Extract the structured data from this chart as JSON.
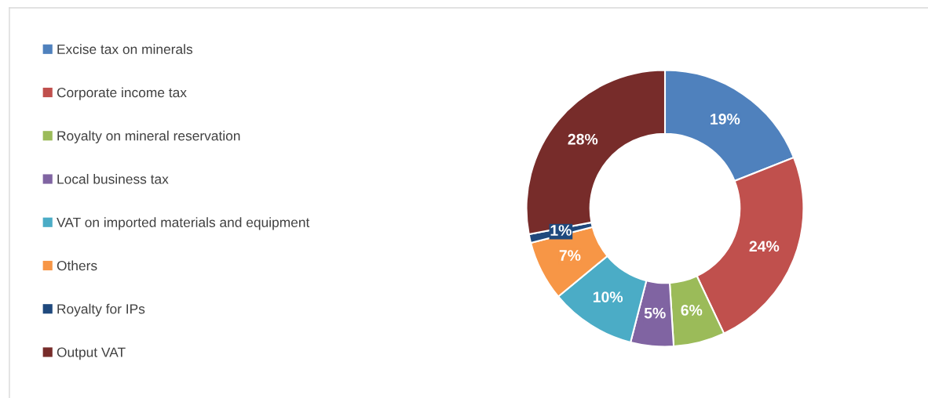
{
  "chart_data": {
    "type": "donut",
    "categories": [
      "Excise tax on minerals",
      "Corporate income tax",
      "Royalty on mineral reservation",
      "Local business tax",
      "VAT on imported materials and equipment",
      "Others",
      "Royalty for IPs",
      "Output VAT"
    ],
    "values": [
      19,
      24,
      6,
      5,
      10,
      7,
      1,
      28
    ],
    "colors": [
      "#4f81bd",
      "#c0504d",
      "#9bbb59",
      "#8064a2",
      "#4bacc6",
      "#f79646",
      "#1f497d",
      "#772c2a"
    ],
    "value_labels": [
      "19%",
      "24%",
      "6%",
      "5%",
      "10%",
      "7%",
      "1%",
      "28%"
    ],
    "legend": "left"
  }
}
